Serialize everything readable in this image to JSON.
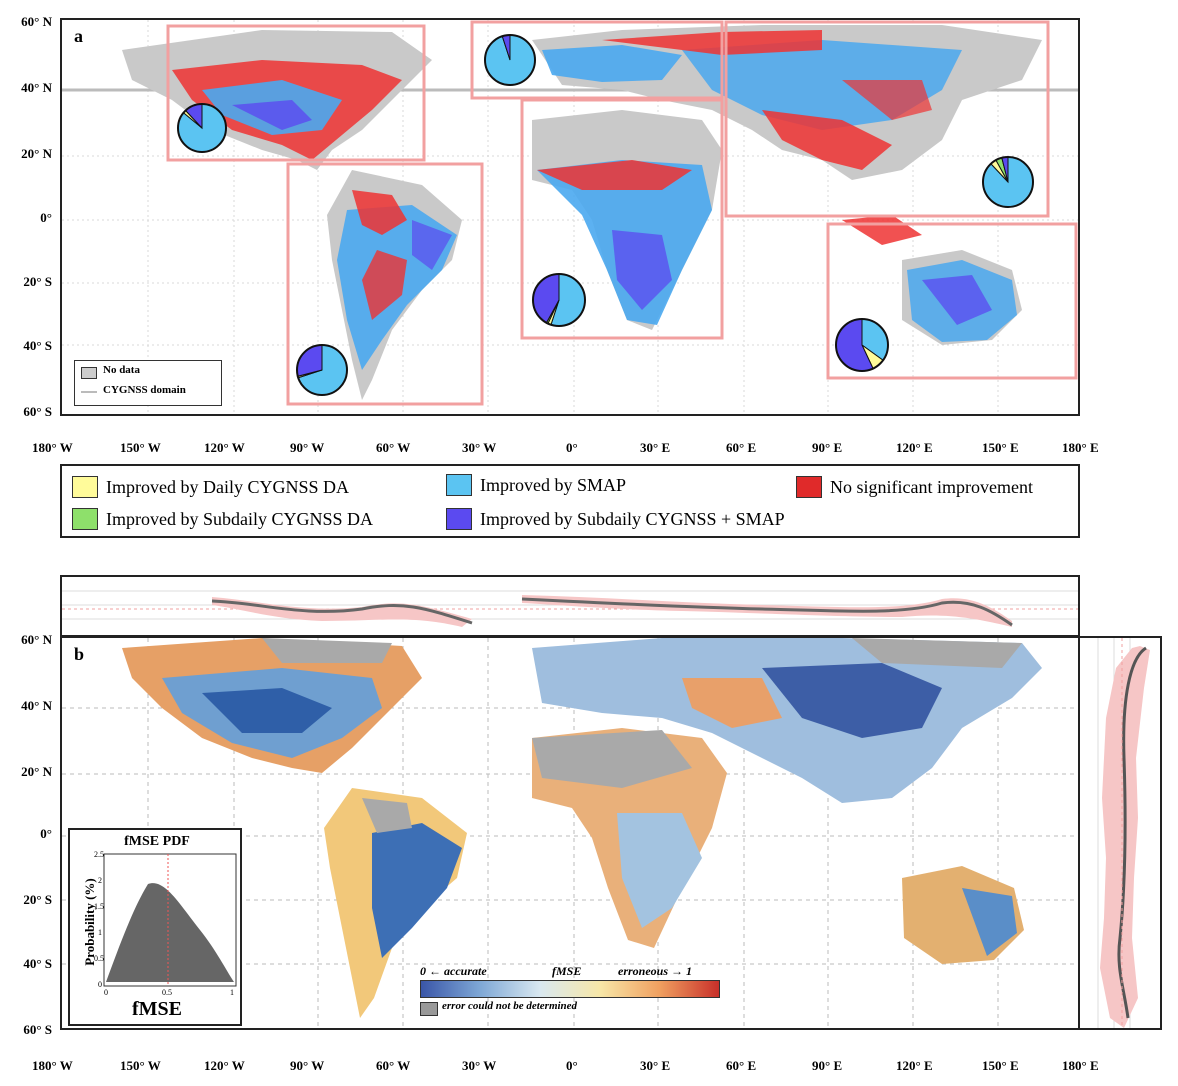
{
  "lat_labels": [
    "60° N",
    "40° N",
    "20° N",
    "0°",
    "20° S",
    "40° S",
    "60° S"
  ],
  "lon_labels": [
    "180° W",
    "150° W",
    "120° W",
    "90° W",
    "60° W",
    "30° W",
    "0°",
    "30° E",
    "60° E",
    "90° E",
    "120° E",
    "150° E",
    "180° E"
  ],
  "panel_a": {
    "letter": "a",
    "small_legend": {
      "no_data": "No data",
      "cygnss_domain": "CYGNSS domain"
    },
    "pies": [
      {
        "region": "north-america",
        "slices": [
          0.86,
          0.02,
          0.0,
          0.12
        ]
      },
      {
        "region": "europe",
        "slices": [
          0.95,
          0.0,
          0.0,
          0.05
        ]
      },
      {
        "region": "south-america",
        "slices": [
          0.7,
          0.01,
          0.0,
          0.29
        ]
      },
      {
        "region": "africa",
        "slices": [
          0.55,
          0.02,
          0.01,
          0.42
        ]
      },
      {
        "region": "asia",
        "slices": [
          0.88,
          0.04,
          0.04,
          0.04
        ]
      },
      {
        "region": "australia",
        "slices": [
          0.35,
          0.08,
          0.0,
          0.57
        ]
      }
    ]
  },
  "legend": {
    "items": [
      {
        "label": "Improved by Daily CYGNSS DA",
        "color": "#fffb9a"
      },
      {
        "label": "Improved by SMAP",
        "color": "#5bc4f2"
      },
      {
        "label": "No significant improvement",
        "color": "#e02a2a"
      },
      {
        "label": "Improved by Subdaily CYGNSS DA",
        "color": "#8ee06b"
      },
      {
        "label": "Improved by Subdaily CYGNSS + SMAP",
        "color": "#5b4af0"
      }
    ]
  },
  "panel_b": {
    "letter": "b",
    "inset": {
      "title": "fMSE PDF",
      "ylabel": "Probability (%)",
      "xlabel": "fMSE",
      "yticks": [
        "2.5",
        "2",
        "1.5",
        "1",
        "0.5",
        "0"
      ],
      "xticks": [
        "0",
        "0.5",
        "1"
      ]
    },
    "colorbar": {
      "left_label": "0 ← accurate",
      "mid_label": "fMSE",
      "right_label": "erroneous → 1",
      "nodata_label": "error could not be determined"
    }
  }
}
